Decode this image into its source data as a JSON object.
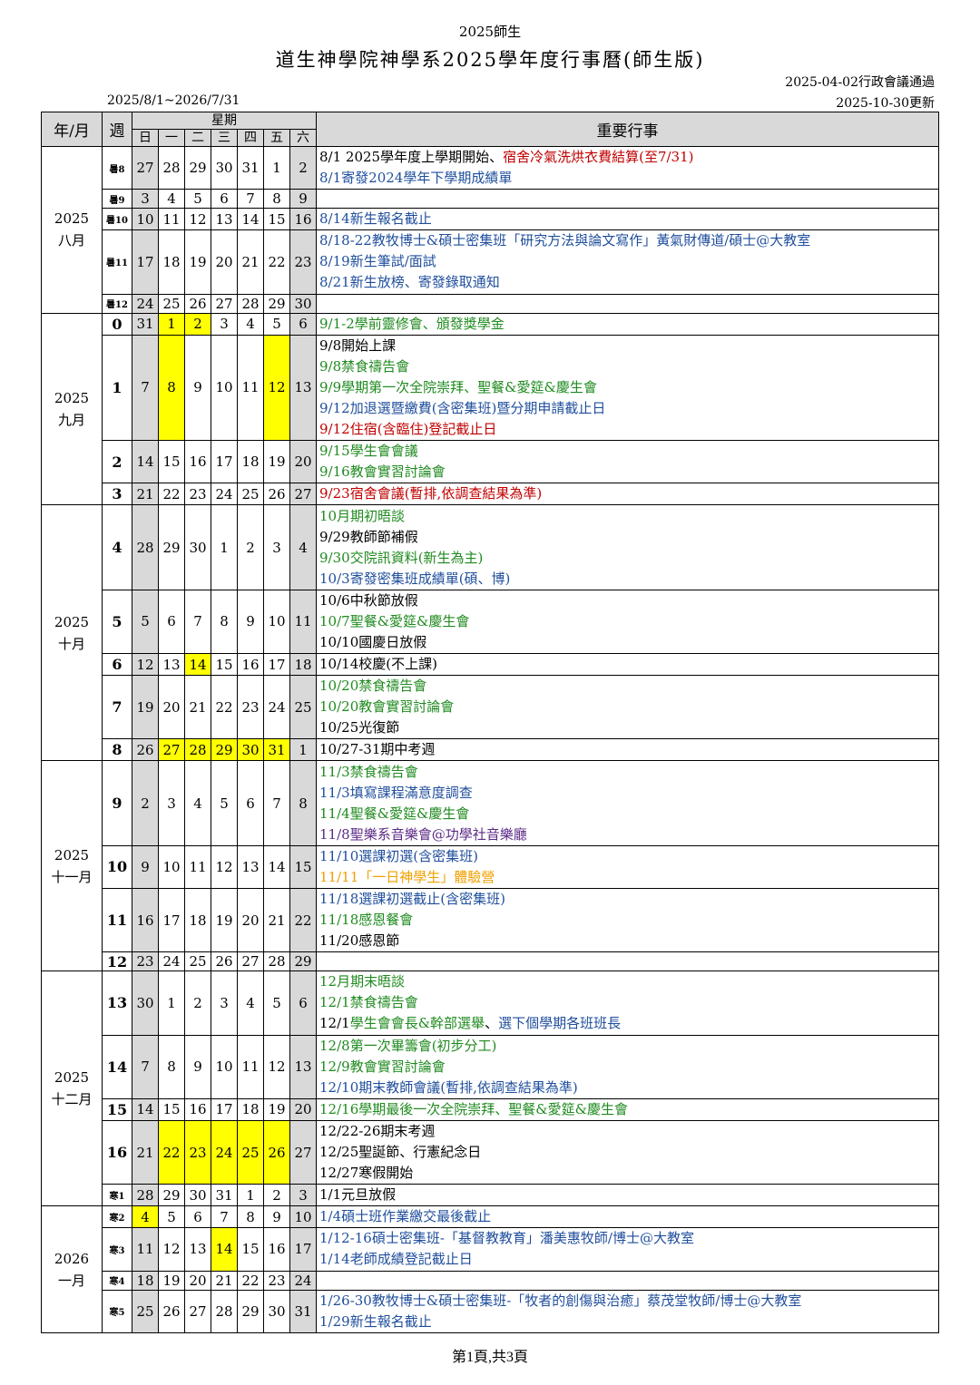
{
  "header": {
    "top_label": "2025師生",
    "title": "道生神學院神學系2025學年度行事曆(師生版)",
    "approval": "2025-04-02行政會議通過",
    "range": "2025/8/1~2026/7/31",
    "updated": "2025-10-30更新"
  },
  "table_header": {
    "month": "年/月",
    "week": "週",
    "weekday_group": "星期",
    "weekdays": [
      "日",
      "一",
      "二",
      "三",
      "四",
      "五",
      "六"
    ],
    "events": "重要行事"
  },
  "colors": {
    "black": "#000000",
    "red": "#c00000",
    "blue": "#1f4e9c",
    "green": "#1f8a1f",
    "purple": "#5b2a86",
    "orange": "#f0a000",
    "gray": "#d9d9d9",
    "yellow": "#ffff00"
  },
  "months": [
    {
      "label": "2025\n八月",
      "weeks": [
        {
          "w": "暑8",
          "rows": 2,
          "d": [
            "27",
            "28",
            "29",
            "30",
            "31",
            "1",
            "2"
          ],
          "y": [],
          "ev": [
            {
              "segs": [
                {
                  "t": "8/1 2025學年度上學期開始、",
                  "c": "black"
                },
                {
                  "t": "宿舍冷氣洗烘衣費結算(至7/31)",
                  "c": "red"
                }
              ]
            },
            {
              "segs": [
                {
                  "t": "8/1寄發2024學年下學期成績單",
                  "c": "blue"
                }
              ]
            }
          ]
        },
        {
          "w": "暑9",
          "rows": 0,
          "d": [
            "3",
            "4",
            "5",
            "6",
            "7",
            "8",
            "9"
          ],
          "y": [],
          "ev": []
        },
        {
          "w": "暑10",
          "rows": 1,
          "d": [
            "10",
            "11",
            "12",
            "13",
            "14",
            "15",
            "16"
          ],
          "y": [],
          "ev": [
            {
              "segs": [
                {
                  "t": "8/14新生報名截止",
                  "c": "blue"
                }
              ]
            }
          ]
        },
        {
          "w": "暑11",
          "rows": 3,
          "d": [
            "17",
            "18",
            "19",
            "20",
            "21",
            "22",
            "23"
          ],
          "y": [],
          "ev": [
            {
              "segs": [
                {
                  "t": "8/18-22教牧博士&碩士密集班「研究方法與論文寫作」黃氣財傳道/碩士@大教室",
                  "c": "blue"
                }
              ]
            },
            {
              "segs": [
                {
                  "t": "8/19新生筆試/面試",
                  "c": "blue"
                }
              ]
            },
            {
              "segs": [
                {
                  "t": "8/21新生放榜、寄發錄取通知",
                  "c": "blue"
                }
              ]
            }
          ]
        },
        {
          "w": "暑12",
          "rows": 0,
          "d": [
            "24",
            "25",
            "26",
            "27",
            "28",
            "29",
            "30"
          ],
          "y": [],
          "ev": []
        }
      ]
    },
    {
      "label": "2025\n九月",
      "weeks": [
        {
          "w": "0",
          "rows": 1,
          "d": [
            "31",
            "1",
            "2",
            "3",
            "4",
            "5",
            "6"
          ],
          "y": [
            1,
            2
          ],
          "ev": [
            {
              "segs": [
                {
                  "t": "9/1-2學前靈修會、頒發獎學金",
                  "c": "green"
                }
              ]
            }
          ]
        },
        {
          "w": "1",
          "rows": 5,
          "d": [
            "7",
            "8",
            "9",
            "10",
            "11",
            "12",
            "13"
          ],
          "y": [
            1,
            5
          ],
          "ev": [
            {
              "segs": [
                {
                  "t": "9/8開始上課",
                  "c": "black"
                }
              ]
            },
            {
              "segs": [
                {
                  "t": "9/8禁食禱告會",
                  "c": "green"
                }
              ]
            },
            {
              "segs": [
                {
                  "t": "9/9學期第一次全院崇拜、聖餐&愛筵&慶生會",
                  "c": "green"
                }
              ]
            },
            {
              "segs": [
                {
                  "t": "9/12加退選暨繳費(含密集班)暨分期申請截止日",
                  "c": "blue"
                }
              ]
            },
            {
              "segs": [
                {
                  "t": "9/12住宿(含臨住)登記截止日",
                  "c": "red"
                }
              ]
            }
          ]
        },
        {
          "w": "2",
          "rows": 2,
          "d": [
            "14",
            "15",
            "16",
            "17",
            "18",
            "19",
            "20"
          ],
          "y": [],
          "ev": [
            {
              "segs": [
                {
                  "t": "9/15學生會會議",
                  "c": "green"
                }
              ]
            },
            {
              "segs": [
                {
                  "t": "9/16教會實習討論會",
                  "c": "green"
                }
              ]
            }
          ]
        },
        {
          "w": "3",
          "rows": 1,
          "d": [
            "21",
            "22",
            "23",
            "24",
            "25",
            "26",
            "27"
          ],
          "y": [],
          "ev": [
            {
              "segs": [
                {
                  "t": "9/23宿舍會議(暫排,依調查結果為準)",
                  "c": "red"
                }
              ]
            }
          ]
        }
      ]
    },
    {
      "label": "2025\n十月",
      "weeks": [
        {
          "w": "4",
          "rows": 4,
          "d": [
            "28",
            "29",
            "30",
            "1",
            "2",
            "3",
            "4"
          ],
          "y": [],
          "ev": [
            {
              "segs": [
                {
                  "t": "10月期初晤談",
                  "c": "green"
                }
              ]
            },
            {
              "segs": [
                {
                  "t": "9/29教師節補假",
                  "c": "black"
                }
              ]
            },
            {
              "segs": [
                {
                  "t": "9/30交院訊資料(新生為主)",
                  "c": "green"
                }
              ]
            },
            {
              "segs": [
                {
                  "t": "10/3寄發密集班成績單(碩、博)",
                  "c": "blue"
                }
              ]
            }
          ]
        },
        {
          "w": "5",
          "rows": 3,
          "d": [
            "5",
            "6",
            "7",
            "8",
            "9",
            "10",
            "11"
          ],
          "y": [],
          "ev": [
            {
              "segs": [
                {
                  "t": "10/6中秋節放假",
                  "c": "black"
                }
              ]
            },
            {
              "segs": [
                {
                  "t": "10/7聖餐&愛筵&慶生會",
                  "c": "green"
                }
              ]
            },
            {
              "segs": [
                {
                  "t": "10/10國慶日放假",
                  "c": "black"
                }
              ]
            }
          ]
        },
        {
          "w": "6",
          "rows": 1,
          "d": [
            "12",
            "13",
            "14",
            "15",
            "16",
            "17",
            "18"
          ],
          "y": [
            2
          ],
          "ev": [
            {
              "segs": [
                {
                  "t": "10/14校慶(不上課)",
                  "c": "black"
                }
              ]
            }
          ]
        },
        {
          "w": "7",
          "rows": 3,
          "d": [
            "19",
            "20",
            "21",
            "22",
            "23",
            "24",
            "25"
          ],
          "y": [],
          "ev": [
            {
              "segs": [
                {
                  "t": "10/20禁食禱告會",
                  "c": "green"
                }
              ]
            },
            {
              "segs": [
                {
                  "t": "10/20教會實習討論會",
                  "c": "green"
                }
              ]
            },
            {
              "segs": [
                {
                  "t": "10/25光復節",
                  "c": "black"
                }
              ]
            }
          ]
        },
        {
          "w": "8",
          "rows": 1,
          "d": [
            "26",
            "27",
            "28",
            "29",
            "30",
            "31",
            "1"
          ],
          "y": [
            1,
            2,
            3,
            4,
            5
          ],
          "ev": [
            {
              "segs": [
                {
                  "t": "10/27-31期中考週",
                  "c": "black"
                }
              ]
            }
          ]
        }
      ]
    },
    {
      "label": "2025\n十一月",
      "weeks": [
        {
          "w": "9",
          "rows": 4,
          "d": [
            "2",
            "3",
            "4",
            "5",
            "6",
            "7",
            "8"
          ],
          "y": [],
          "ev": [
            {
              "segs": [
                {
                  "t": "11/3禁食禱告會",
                  "c": "green"
                }
              ]
            },
            {
              "segs": [
                {
                  "t": "11/3填寫課程滿意度調查",
                  "c": "blue"
                }
              ]
            },
            {
              "segs": [
                {
                  "t": "11/4聖餐&愛筵&慶生會",
                  "c": "green"
                }
              ]
            },
            {
              "segs": [
                {
                  "t": "11/8聖樂系音樂會@功學社音樂廳",
                  "c": "purple"
                }
              ]
            }
          ]
        },
        {
          "w": "10",
          "rows": 2,
          "d": [
            "9",
            "10",
            "11",
            "12",
            "13",
            "14",
            "15"
          ],
          "y": [],
          "ev": [
            {
              "segs": [
                {
                  "t": "11/10選課初選(含密集班)",
                  "c": "blue"
                }
              ]
            },
            {
              "segs": [
                {
                  "t": "11/11「一日神學生」體驗營",
                  "c": "orange"
                }
              ]
            }
          ]
        },
        {
          "w": "11",
          "rows": 3,
          "d": [
            "16",
            "17",
            "18",
            "19",
            "20",
            "21",
            "22"
          ],
          "y": [],
          "ev": [
            {
              "segs": [
                {
                  "t": "11/18選課初選截止(含密集班)",
                  "c": "blue"
                }
              ]
            },
            {
              "segs": [
                {
                  "t": "11/18感恩餐會",
                  "c": "green"
                }
              ]
            },
            {
              "segs": [
                {
                  "t": "11/20感恩節",
                  "c": "black"
                }
              ]
            }
          ]
        },
        {
          "w": "12",
          "rows": 0,
          "d": [
            "23",
            "24",
            "25",
            "26",
            "27",
            "28",
            "29"
          ],
          "y": [],
          "ev": []
        }
      ]
    },
    {
      "label": "2025\n十二月",
      "weeks": [
        {
          "w": "13",
          "rows": 3,
          "d": [
            "30",
            "1",
            "2",
            "3",
            "4",
            "5",
            "6"
          ],
          "y": [],
          "ev": [
            {
              "segs": [
                {
                  "t": "12月期末晤談",
                  "c": "green"
                }
              ]
            },
            {
              "segs": [
                {
                  "t": "12/1禁食禱告會",
                  "c": "green"
                }
              ]
            },
            {
              "segs": [
                {
                  "t": "12/1",
                  "c": "black"
                },
                {
                  "t": "學生會會長&幹部選舉",
                  "c": "green"
                },
                {
                  "t": "、",
                  "c": "black"
                },
                {
                  "t": "選下個學期各班班長",
                  "c": "blue"
                }
              ]
            }
          ]
        },
        {
          "w": "14",
          "rows": 3,
          "d": [
            "7",
            "8",
            "9",
            "10",
            "11",
            "12",
            "13"
          ],
          "y": [],
          "ev": [
            {
              "segs": [
                {
                  "t": "12/8第一次畢籌會(初步分工)",
                  "c": "green"
                }
              ]
            },
            {
              "segs": [
                {
                  "t": "12/9教會實習討論會",
                  "c": "green"
                }
              ]
            },
            {
              "segs": [
                {
                  "t": "12/10期末教師會議(暫排,依調查結果為準)",
                  "c": "blue"
                }
              ]
            }
          ]
        },
        {
          "w": "15",
          "rows": 1,
          "d": [
            "14",
            "15",
            "16",
            "17",
            "18",
            "19",
            "20"
          ],
          "y": [],
          "ev": [
            {
              "segs": [
                {
                  "t": "12/16學期最後一次全院崇拜、聖餐&愛筵&慶生會",
                  "c": "green"
                }
              ]
            }
          ]
        },
        {
          "w": "16",
          "rows": 3,
          "d": [
            "21",
            "22",
            "23",
            "24",
            "25",
            "26",
            "27"
          ],
          "y": [
            1,
            2,
            3,
            4,
            5
          ],
          "ev": [
            {
              "segs": [
                {
                  "t": "12/22-26期末考週",
                  "c": "black"
                }
              ]
            },
            {
              "segs": [
                {
                  "t": "12/25聖誕節、行憲紀念日",
                  "c": "black"
                }
              ]
            },
            {
              "segs": [
                {
                  "t": "12/27寒假開始",
                  "c": "black"
                }
              ]
            }
          ]
        },
        {
          "w": "寒1",
          "rows": 1,
          "d": [
            "28",
            "29",
            "30",
            "31",
            "1",
            "2",
            "3"
          ],
          "y": [],
          "ev": [
            {
              "segs": [
                {
                  "t": "1/1元旦放假",
                  "c": "black"
                }
              ]
            }
          ]
        }
      ]
    },
    {
      "label": "2026\n一月",
      "weeks": [
        {
          "w": "寒2",
          "rows": 1,
          "d": [
            "4",
            "5",
            "6",
            "7",
            "8",
            "9",
            "10"
          ],
          "y": [
            0
          ],
          "ev": [
            {
              "segs": [
                {
                  "t": "1/4碩士班作業繳交最後截止",
                  "c": "blue"
                }
              ]
            }
          ]
        },
        {
          "w": "寒3",
          "rows": 2,
          "d": [
            "11",
            "12",
            "13",
            "14",
            "15",
            "16",
            "17"
          ],
          "y": [
            3
          ],
          "ev": [
            {
              "segs": [
                {
                  "t": "1/12-16碩士密集班-「基督教教育」潘美惠牧師/博士@大教室",
                  "c": "blue"
                }
              ]
            },
            {
              "segs": [
                {
                  "t": "1/14老師成績登記截止日",
                  "c": "blue"
                }
              ]
            }
          ]
        },
        {
          "w": "寒4",
          "rows": 0,
          "d": [
            "18",
            "19",
            "20",
            "21",
            "22",
            "23",
            "24"
          ],
          "y": [],
          "ev": []
        },
        {
          "w": "寒5",
          "rows": 2,
          "d": [
            "25",
            "26",
            "27",
            "28",
            "29",
            "30",
            "31"
          ],
          "y": [],
          "ev": [
            {
              "segs": [
                {
                  "t": "1/26-30教牧博士&碩士密集班-「牧者的創傷與治癒」蔡茂堂牧師/博士@大教室",
                  "c": "blue"
                }
              ]
            },
            {
              "segs": [
                {
                  "t": "1/29新生報名截止",
                  "c": "blue"
                }
              ]
            }
          ]
        }
      ]
    }
  ],
  "footer": "第1頁,共3頁"
}
